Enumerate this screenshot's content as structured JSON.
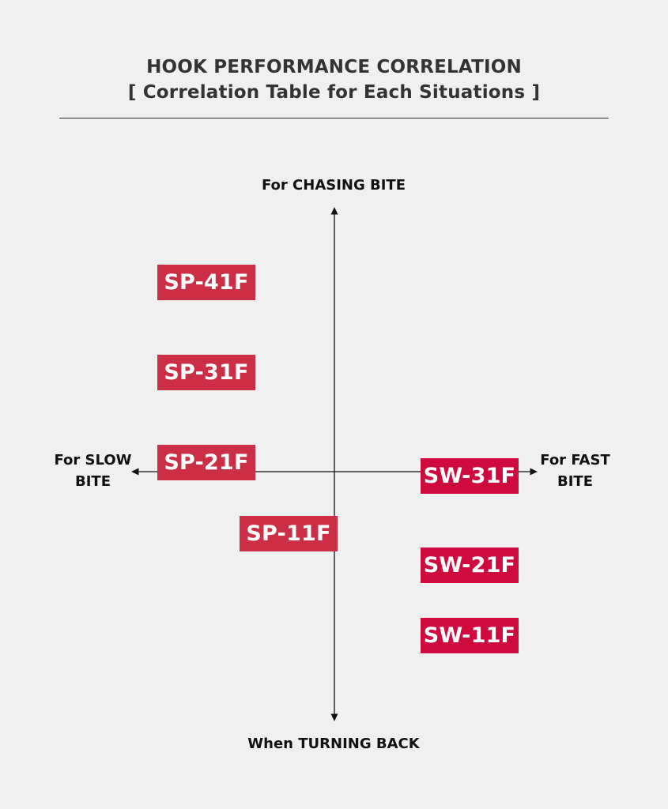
{
  "header": {
    "title": "HOOK PERFORMANCE CORRELATION",
    "subtitle": "[ Correlation Table for Each Situations ]"
  },
  "axes": {
    "top": "For CHASING BITE",
    "bottom": "When TURNING BACK",
    "left_line1": "For SLOW",
    "left_line2": "BITE",
    "right_line1": "For FAST",
    "right_line2": "BITE"
  },
  "products": [
    {
      "label": "SP-41F",
      "color": "#cc2e45"
    },
    {
      "label": "SP-31F",
      "color": "#cc2e45"
    },
    {
      "label": "SP-21F",
      "color": "#cc2e45"
    },
    {
      "label": "SP-11F",
      "color": "#cc2e45"
    },
    {
      "label": "SW-31F",
      "color": "#cf0a3f"
    },
    {
      "label": "SW-21F",
      "color": "#cf0a3f"
    },
    {
      "label": "SW-11F",
      "color": "#cf0a3f"
    }
  ],
  "colors": {
    "background": "#f0f0f0",
    "axis": "#111111",
    "title": "#333333"
  }
}
